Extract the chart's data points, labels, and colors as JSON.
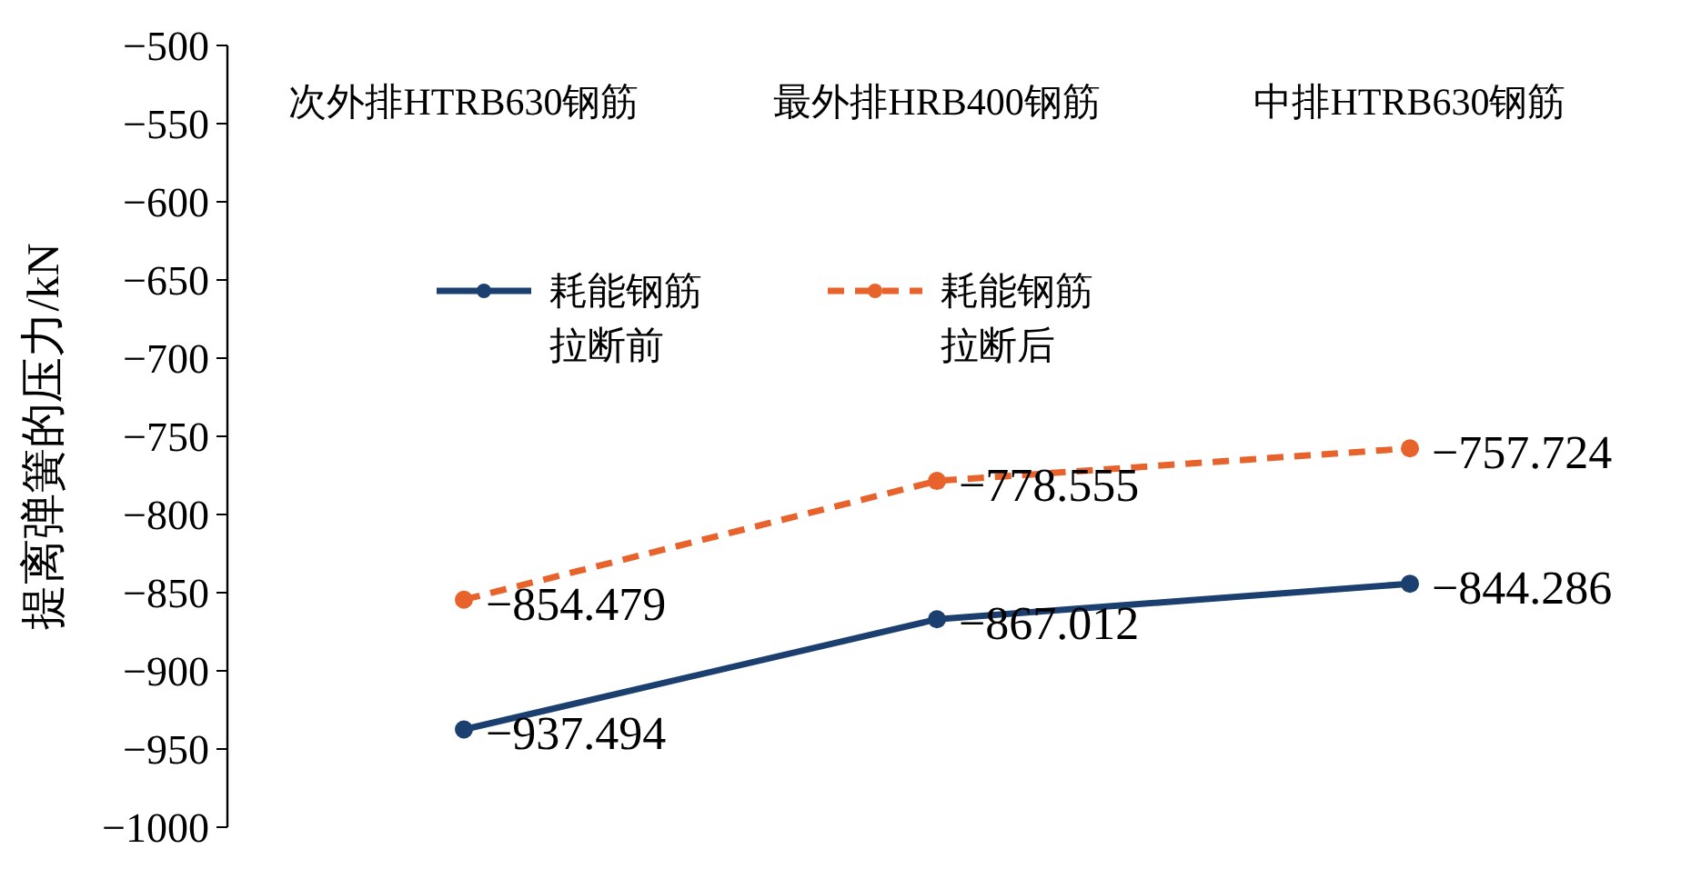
{
  "chart_data": {
    "type": "line",
    "ylabel": "提离弹簧的压力/kN",
    "categories": [
      "次外排HTRB630钢筋",
      "最外排HRB400钢筋",
      "中排HTRB630钢筋"
    ],
    "series": [
      {
        "name": "耗能钢筋拉断前",
        "color": "#1b3f6e",
        "values": [
          -937.494,
          -867.012,
          -844.286
        ],
        "line_style": "solid"
      },
      {
        "name": "耗能钢筋拉断后",
        "color": "#e8622c",
        "values": [
          -854.479,
          -778.555,
          -757.724
        ],
        "line_style": "dashed"
      }
    ],
    "ylim": [
      -1000,
      -500
    ],
    "yticks": [
      -500,
      -550,
      -600,
      -650,
      -700,
      -750,
      -800,
      -850,
      -900,
      -950,
      -1000
    ],
    "marker": "circle",
    "data_labels": true,
    "legend": "top left",
    "grid": false
  }
}
